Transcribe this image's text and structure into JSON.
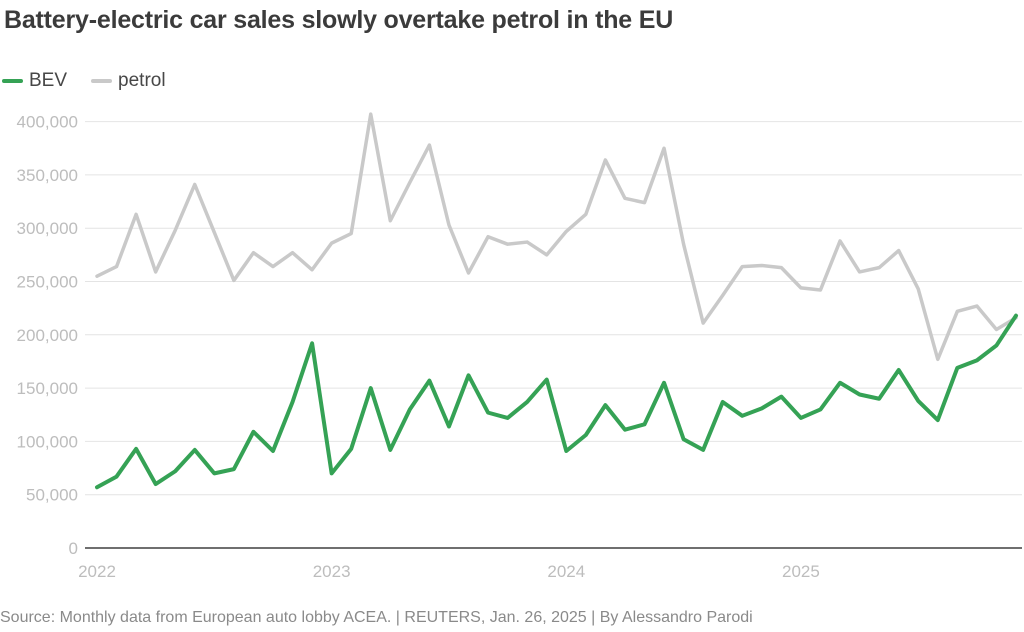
{
  "header": {
    "title": "Battery-electric car sales slowly overtake petrol in the EU"
  },
  "legend": {
    "items": [
      {
        "label": "BEV",
        "color": "#35a255"
      },
      {
        "label": "petrol",
        "color": "#c9c9c9"
      }
    ]
  },
  "footer": {
    "source": "Source: Monthly data from European auto lobby ACEA. | REUTERS, Jan. 26, 2025 | By Alessandro Parodi"
  },
  "chart_data": {
    "type": "line",
    "title": "Battery-electric car sales slowly overtake petrol in the EU",
    "xlabel": "",
    "ylabel": "",
    "grid": true,
    "legend_position": "top-left",
    "ylim": [
      0,
      400000
    ],
    "ytick_values": [
      0,
      50000,
      100000,
      150000,
      200000,
      250000,
      300000,
      350000,
      400000
    ],
    "ytick_labels": [
      "0",
      "50,000",
      "100,000",
      "150,000",
      "200,000",
      "250,000",
      "300,000",
      "350,000",
      "400,000"
    ],
    "xticks": [
      {
        "label": "2022",
        "month_index": 0
      },
      {
        "label": "2023",
        "month_index": 12
      },
      {
        "label": "2024",
        "month_index": 24
      },
      {
        "label": "2025",
        "month_index": 36
      }
    ],
    "x": [
      "2022-01",
      "2022-02",
      "2022-03",
      "2022-04",
      "2022-05",
      "2022-06",
      "2022-07",
      "2022-08",
      "2022-09",
      "2022-10",
      "2022-11",
      "2022-12",
      "2023-01",
      "2023-02",
      "2023-03",
      "2023-04",
      "2023-05",
      "2023-06",
      "2023-07",
      "2023-08",
      "2023-09",
      "2023-10",
      "2023-11",
      "2023-12",
      "2024-01",
      "2024-02",
      "2024-03",
      "2024-04",
      "2024-05",
      "2024-06",
      "2024-07",
      "2024-08",
      "2024-09",
      "2024-10",
      "2024-11",
      "2024-12",
      "2025-01",
      "2025-02",
      "2025-03",
      "2025-04",
      "2025-05",
      "2025-06",
      "2025-07",
      "2025-08",
      "2025-09",
      "2025-10",
      "2025-11",
      "2025-12"
    ],
    "series": [
      {
        "name": "petrol",
        "color": "#c9c9c9",
        "stroke_width": 3.5,
        "values": [
          255000,
          264000,
          313000,
          259000,
          298000,
          341000,
          296000,
          251000,
          277000,
          264000,
          277000,
          261000,
          286000,
          295000,
          407000,
          307000,
          343000,
          378000,
          303000,
          258000,
          292000,
          285000,
          287000,
          275000,
          297000,
          313000,
          364000,
          328000,
          324000,
          375000,
          285000,
          211000,
          237000,
          264000,
          265000,
          263000,
          244000,
          242000,
          288000,
          259000,
          263000,
          279000,
          243000,
          177000,
          222000,
          227000,
          205000,
          216000
        ]
      },
      {
        "name": "BEV",
        "color": "#35a255",
        "stroke_width": 4,
        "values": [
          57000,
          67000,
          93000,
          60000,
          72000,
          92000,
          70000,
          74000,
          109000,
          91000,
          137000,
          192000,
          70000,
          93000,
          150000,
          92000,
          130000,
          157000,
          114000,
          162000,
          127000,
          122000,
          137000,
          158000,
          91000,
          106000,
          134000,
          111000,
          116000,
          155000,
          102000,
          92000,
          137000,
          124000,
          131000,
          142000,
          122000,
          130000,
          155000,
          144000,
          140000,
          167000,
          138000,
          120000,
          169000,
          176000,
          190000,
          218000
        ]
      }
    ],
    "style": {
      "gridline_color": "#e4e4e4",
      "zero_axis_color": "#6f6f6f",
      "tick_label_color": "#bdbdbd"
    }
  }
}
